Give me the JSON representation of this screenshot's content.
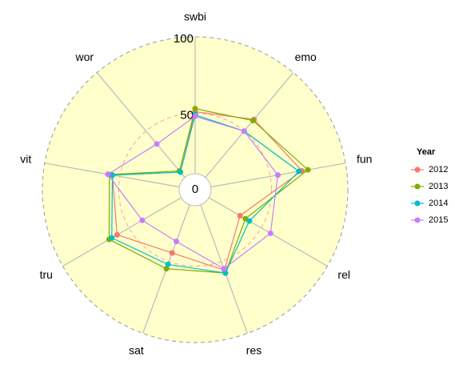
{
  "chart_data": {
    "type": "radar",
    "categories": [
      "swbi",
      "emo",
      "fun",
      "rel",
      "res",
      "sat",
      "tru",
      "vit",
      "wor"
    ],
    "series": [
      {
        "name": "2012",
        "color": "#F8766D",
        "values": [
          51,
          60,
          71,
          34,
          56,
          44,
          59,
          55,
          15
        ]
      },
      {
        "name": "2013",
        "color": "#7CAE00",
        "values": [
          53,
          59,
          75,
          38,
          58,
          55,
          65,
          57,
          16
        ]
      },
      {
        "name": "2014",
        "color": "#00BFC4",
        "values": [
          49,
          50,
          69,
          41,
          58,
          52,
          63,
          55,
          15
        ]
      },
      {
        "name": "2015",
        "color": "#C77CFF",
        "values": [
          48,
          50,
          55,
          57,
          55,
          36,
          40,
          58,
          39
        ]
      }
    ],
    "ylim": [
      0,
      100
    ],
    "yticks": [
      0,
      50,
      100
    ],
    "legend_title": "Year",
    "legend": "right"
  }
}
